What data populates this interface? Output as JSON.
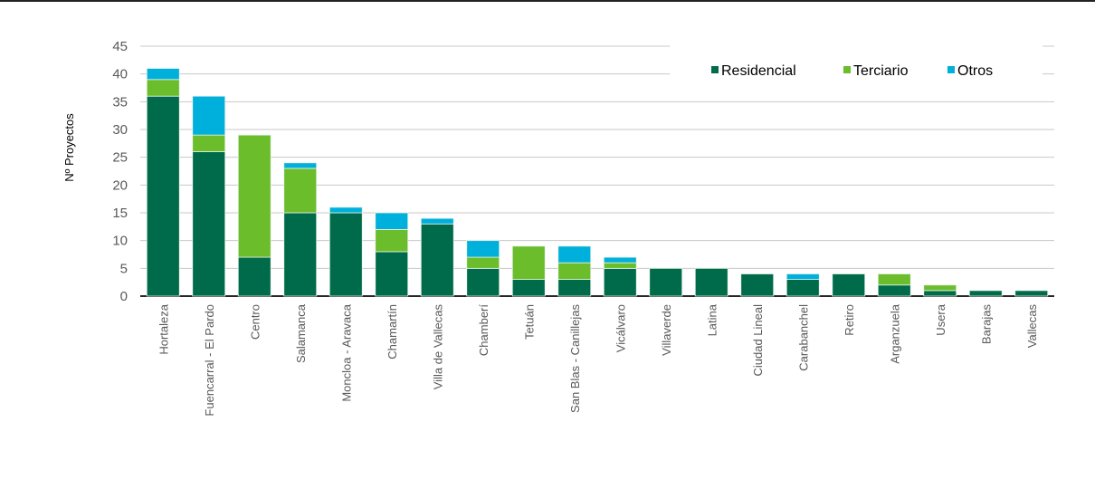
{
  "chart_data": {
    "type": "bar",
    "stacked": true,
    "title": "",
    "xlabel": "",
    "ylabel": "Nº Proyectos",
    "ylim": [
      0,
      45
    ],
    "yticks": [
      0,
      5,
      10,
      15,
      20,
      25,
      30,
      35,
      40,
      45
    ],
    "grid": true,
    "legend_position": "top-right",
    "categories": [
      "Hortaleza",
      "Fuencarral - El Pardo",
      "Centro",
      "Salamanca",
      "Moncloa - Aravaca",
      "Chamartín",
      "Villa de Vallecas",
      "Chamberí",
      "Tetuán",
      "San Blas - Canillejas",
      "Vicálvaro",
      "Villaverde",
      "Latina",
      "Ciudad Lineal",
      "Carabanchel",
      "Retiro",
      "Arganzuela",
      "Usera",
      "Barajas",
      "Vallecas"
    ],
    "series": [
      {
        "name": "Residencial",
        "color": "#006b4a",
        "values": [
          36,
          26,
          7,
          15,
          15,
          8,
          13,
          5,
          3,
          3,
          5,
          5,
          5,
          4,
          3,
          4,
          2,
          1,
          1,
          1
        ]
      },
      {
        "name": "Terciario",
        "color": "#6cbd2c",
        "values": [
          3,
          3,
          22,
          8,
          0,
          4,
          0,
          2,
          6,
          3,
          1,
          0,
          0,
          0,
          0,
          0,
          2,
          1,
          0,
          0
        ]
      },
      {
        "name": "Otros",
        "color": "#00b0dc",
        "values": [
          2,
          7,
          0,
          1,
          1,
          3,
          1,
          3,
          0,
          3,
          1,
          0,
          0,
          0,
          1,
          0,
          0,
          0,
          0,
          0
        ]
      }
    ]
  }
}
